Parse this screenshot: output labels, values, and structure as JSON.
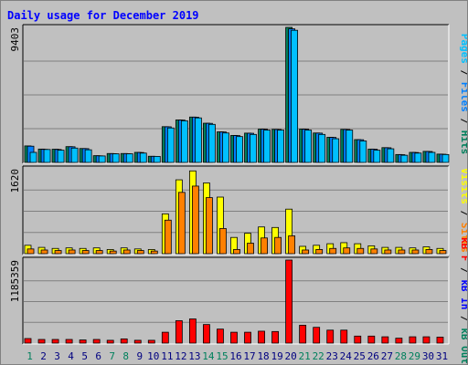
{
  "chart_data": {
    "type": "bar",
    "title": "Daily usage for December 2019",
    "days": [
      "1",
      "2",
      "3",
      "4",
      "5",
      "6",
      "7",
      "8",
      "9",
      "10",
      "11",
      "12",
      "13",
      "14",
      "15",
      "16",
      "17",
      "18",
      "19",
      "20",
      "21",
      "22",
      "23",
      "24",
      "25",
      "26",
      "27",
      "28",
      "29",
      "30",
      "31"
    ],
    "weekend_days": [
      "1",
      "7",
      "8",
      "14",
      "15",
      "21",
      "22",
      "28",
      "29"
    ],
    "panels": [
      {
        "id": "traffic",
        "max_label": "9403",
        "ylim": [
          0,
          9403
        ],
        "axis_label_parts": [
          {
            "text": "Pages",
            "color": "#00c0ff"
          },
          {
            "text": " / ",
            "color": "#000000"
          },
          {
            "text": "Files",
            "color": "#0080ff"
          },
          {
            "text": " / ",
            "color": "#000000"
          },
          {
            "text": "Hits",
            "color": "#00805c"
          }
        ],
        "series": [
          {
            "name": "Hits",
            "color": "#00805c",
            "values": [
              1150,
              930,
              920,
              1100,
              970,
              470,
              620,
              620,
              700,
              430,
              2490,
              2960,
              3160,
              2730,
              2130,
              1880,
              2040,
              2320,
              2300,
              9403,
              2320,
              2050,
              1750,
              2300,
              1590,
              930,
              1030,
              550,
              700,
              770,
              580
            ]
          },
          {
            "name": "Files",
            "color": "#0080ff",
            "values": [
              1130,
              910,
              900,
              1090,
              960,
              460,
              610,
              610,
              690,
              420,
              2480,
              2950,
              3150,
              2720,
              2120,
              1870,
              2030,
              2310,
              2290,
              9300,
              2310,
              2040,
              1740,
              2290,
              1580,
              920,
              1020,
              540,
              690,
              760,
              570
            ]
          },
          {
            "name": "Pages",
            "color": "#00c0ff",
            "values": [
              700,
              900,
              850,
              1000,
              880,
              450,
              600,
              600,
              650,
              420,
              2400,
              2900,
              3100,
              2650,
              2050,
              1800,
              1950,
              2250,
              2250,
              9200,
              2250,
              1950,
              1650,
              2250,
              1500,
              850,
              950,
              500,
              650,
              700,
              550
            ]
          }
        ]
      },
      {
        "id": "visits",
        "max_label": "1620",
        "ylim": [
          0,
          1620
        ],
        "axis_label_parts": [
          {
            "text": "Visits",
            "color": "#ffff00"
          },
          {
            "text": " / ",
            "color": "#000000"
          },
          {
            "text": "Sites",
            "color": "#ff8000"
          }
        ],
        "series": [
          {
            "name": "Visits",
            "color": "#ffff00",
            "values": [
              160,
              120,
              100,
              110,
              100,
              110,
              80,
              110,
              90,
              80,
              760,
              1410,
              1580,
              1350,
              1080,
              310,
              390,
              510,
              500,
              850,
              140,
              160,
              190,
              210,
              190,
              150,
              120,
              120,
              110,
              130,
              100
            ]
          },
          {
            "name": "Sites",
            "color": "#ff8000",
            "values": [
              90,
              70,
              60,
              70,
              60,
              60,
              50,
              70,
              60,
              50,
              640,
              1170,
              1290,
              1070,
              480,
              80,
              200,
              300,
              310,
              340,
              70,
              80,
              100,
              110,
              100,
              90,
              70,
              70,
              70,
              80,
              60
            ]
          }
        ]
      },
      {
        "id": "volume",
        "max_label": "1185359",
        "ylim": [
          0,
          1185359
        ],
        "axis_label_parts": [
          {
            "text": "kB F",
            "color": "#ff0000"
          },
          {
            "text": " / ",
            "color": "#000000"
          },
          {
            "text": "kB In",
            "color": "#0000ff"
          },
          {
            "text": " / ",
            "color": "#000000"
          },
          {
            "text": "kB Out",
            "color": "#00805c"
          }
        ],
        "series": [
          {
            "name": "kB F",
            "color": "#ff0000",
            "values": [
              65000,
              52000,
              52000,
              52000,
              45000,
              52000,
              40000,
              60000,
              40000,
              40000,
              155000,
              320000,
              345000,
              265000,
              200000,
              155000,
              155000,
              170000,
              165000,
              1185359,
              255000,
              225000,
              185000,
              185000,
              100000,
              100000,
              90000,
              70000,
              90000,
              90000,
              85000
            ]
          }
        ]
      }
    ]
  },
  "colors": {
    "background": "#c0c0c0",
    "plot_background": "#c0c0c0",
    "title": "#0000ff",
    "weekday_label": "#000080",
    "weekend_label": "#00805c"
  }
}
